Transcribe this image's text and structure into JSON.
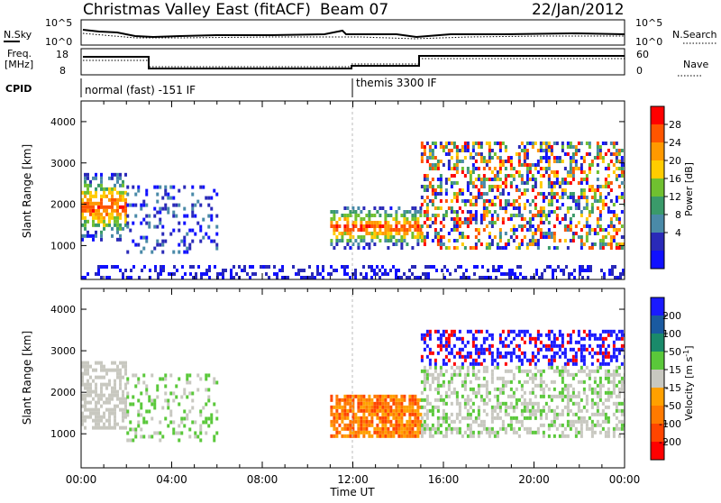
{
  "header": {
    "title": "Christmas Valley East (fitACF)",
    "beam": "Beam 07",
    "date": "22/Jan/2012"
  },
  "top_panels": {
    "noise": {
      "left_label": "N.Sky",
      "left_ticks": [
        "10^5",
        "10^0"
      ],
      "right_label": "N.Search",
      "right_ticks": [
        "10^5",
        "10^0"
      ]
    },
    "freq": {
      "left_label_line1": "Freq.",
      "left_label_line2": "[MHz]",
      "left_ticks": [
        "18",
        "8"
      ],
      "right_label": "Nave",
      "right_ticks": [
        "60",
        "0"
      ]
    },
    "cpid": {
      "label": "CPID",
      "modes": [
        "normal (fast) -151 IF",
        "themis 3300 IF"
      ]
    }
  },
  "time_axis": {
    "label": "Time UT",
    "ticks": [
      "00:00",
      "04:00",
      "08:00",
      "12:00",
      "16:00",
      "20:00",
      "00:00"
    ]
  },
  "chart_data": [
    {
      "type": "heatmap",
      "title": "",
      "xlabel": "Time UT",
      "ylabel": "Slant Range [km]",
      "xlim": [
        0,
        24
      ],
      "ylim": [
        180,
        4500
      ],
      "yticks": [
        "1000",
        "2000",
        "3000",
        "4000"
      ],
      "colorbar": {
        "label": "Power [dB]",
        "ticks": [
          "28",
          "24",
          "20",
          "16",
          "12",
          "8",
          "4"
        ],
        "colors": [
          "#ff0000",
          "#ff5500",
          "#ff9900",
          "#ffcc00",
          "#70c030",
          "#3a9a6a",
          "#4a8aa8",
          "#2a2ab8",
          "#1010ff"
        ]
      },
      "echo_regions": [
        {
          "t_start": 0.0,
          "t_end": 2.0,
          "r_min": 1100,
          "r_max": 2700,
          "level": "strong"
        },
        {
          "t_start": 2.0,
          "t_end": 6.0,
          "r_min": 800,
          "r_max": 2400,
          "level": "weak"
        },
        {
          "t_start": 11.0,
          "t_end": 15.0,
          "r_min": 900,
          "r_max": 1900,
          "level": "strong"
        },
        {
          "t_start": 15.0,
          "t_end": 24.0,
          "r_min": 900,
          "r_max": 3500,
          "level": "mixed"
        },
        {
          "t_start": 0.0,
          "t_end": 24.0,
          "r_min": 180,
          "r_max": 450,
          "level": "ground"
        }
      ]
    },
    {
      "type": "heatmap",
      "title": "",
      "xlabel": "Time UT",
      "ylabel": "Slant Range [km]",
      "xlim": [
        0,
        24
      ],
      "ylim": [
        180,
        4500
      ],
      "yticks": [
        "1000",
        "2000",
        "3000",
        "4000"
      ],
      "colorbar": {
        "label": "Velocity [m s",
        "label_sup": "-1",
        "label_end": "]",
        "ticks": [
          "200",
          "100",
          "50",
          "15",
          "-15",
          "-50",
          "-100",
          "-200"
        ],
        "colors": [
          "#1a1aff",
          "#1a5aa0",
          "#1a8a6a",
          "#5ac83a",
          "#c8c8c0",
          "#ffa000",
          "#ff7a00",
          "#ff4500",
          "#ff0000"
        ]
      },
      "echo_regions": [
        {
          "t_start": 0.0,
          "t_end": 2.0,
          "r_min": 1100,
          "r_max": 2700,
          "flow": "ground-scatter"
        },
        {
          "t_start": 2.0,
          "t_end": 6.0,
          "r_min": 800,
          "r_max": 2400,
          "flow": "low-positive"
        },
        {
          "t_start": 11.0,
          "t_end": 15.0,
          "r_min": 900,
          "r_max": 1900,
          "flow": "negative"
        },
        {
          "t_start": 15.0,
          "t_end": 24.0,
          "r_min": 900,
          "r_max": 3500,
          "flow": "mixed"
        }
      ]
    }
  ]
}
